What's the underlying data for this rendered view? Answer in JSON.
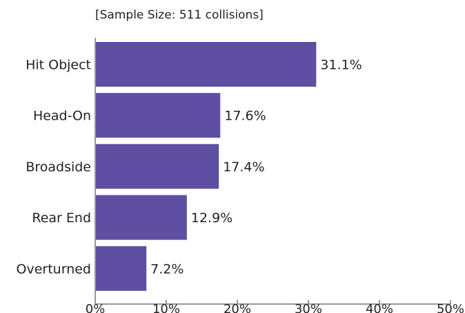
{
  "chart_data": {
    "type": "bar",
    "orientation": "horizontal",
    "subtitle": "[Sample Size: 511 collisions]",
    "categories": [
      "Hit Object",
      "Head-On",
      "Broadside",
      "Rear End",
      "Overturned"
    ],
    "values": [
      31.1,
      17.6,
      17.4,
      12.9,
      7.2
    ],
    "value_labels": [
      "31.1%",
      "17.6%",
      "17.4%",
      "12.9%",
      "7.2%"
    ],
    "xlim": [
      0,
      50
    ],
    "xticks": [
      0,
      10,
      20,
      30,
      40,
      50
    ],
    "xtick_labels": [
      "0%",
      "10%",
      "20%",
      "30%",
      "40%",
      "50%"
    ],
    "grid": false,
    "bar_color": "#5e4fa2",
    "axis_color": "#999999"
  }
}
